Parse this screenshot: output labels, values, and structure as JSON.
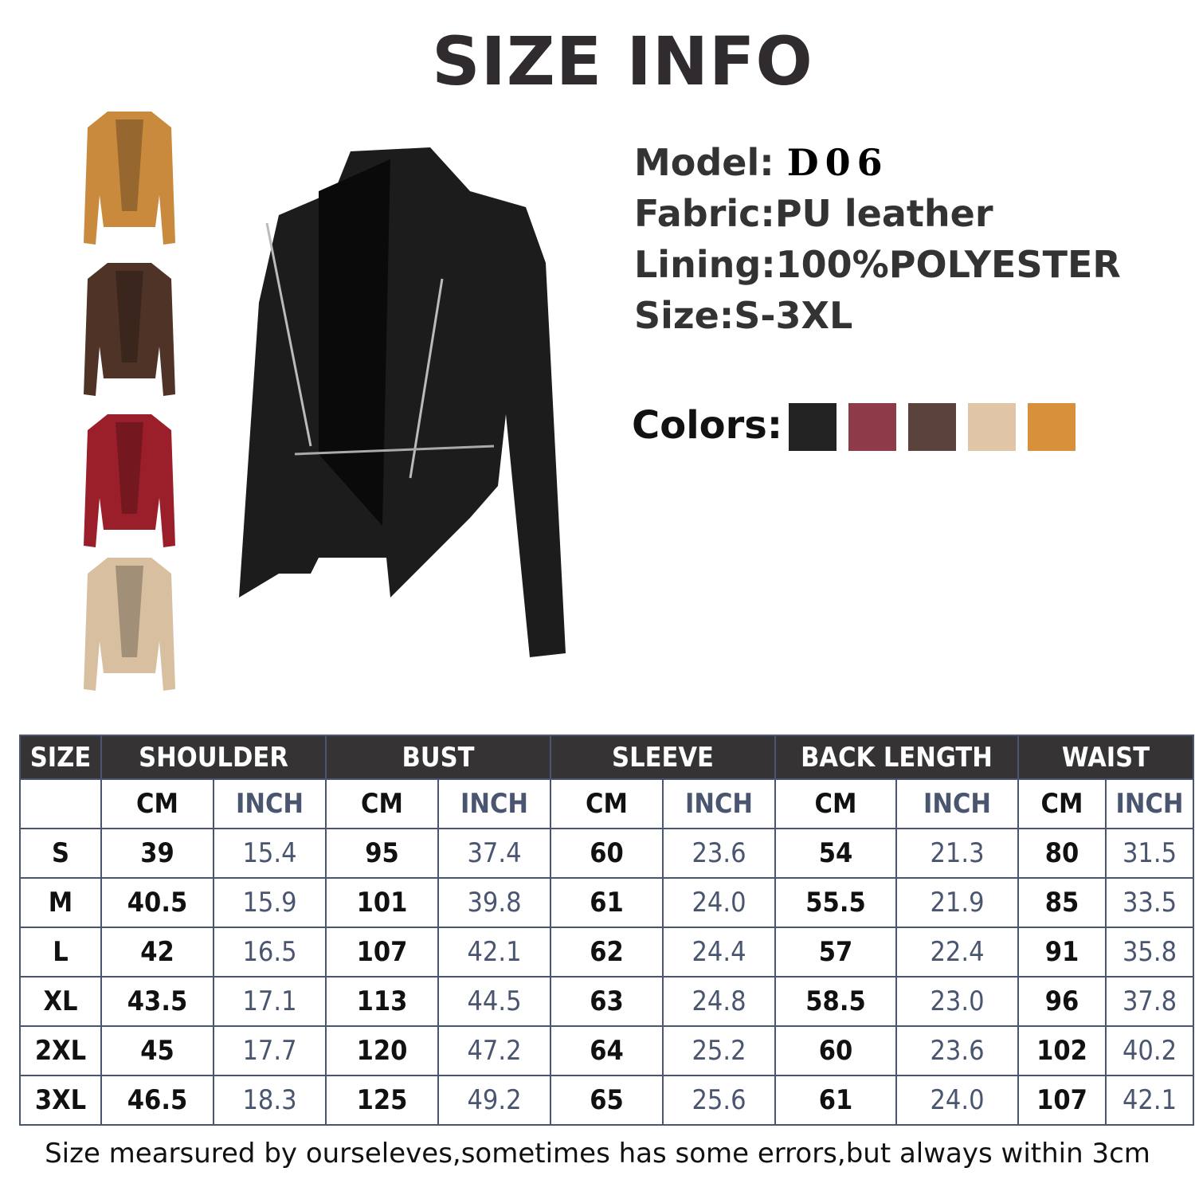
{
  "title": "SIZE INFO",
  "specs": {
    "model_label": "Model:",
    "model_code": "D06",
    "fabric": "Fabric:PU leather",
    "lining": "Lining:100%POLYESTER",
    "size": "Size:S-3XL",
    "colors_label": "Colors:",
    "colors": [
      "#232323",
      "#8e3a48",
      "#5a433c",
      "#e1c5a7",
      "#d8913b"
    ]
  },
  "thumbnails": [
    {
      "color": "#c98a3e"
    },
    {
      "color": "#4e3326"
    },
    {
      "color": "#9b1f2a"
    },
    {
      "color": "#d8bfa0"
    }
  ],
  "hero_color": "#1c1c1c",
  "table": {
    "headers": [
      "SIZE",
      "SHOULDER",
      "BUST",
      "SLEEVE",
      "BACK LENGTH",
      "WAIST"
    ],
    "units": [
      "CM",
      "INCH"
    ],
    "rows": [
      [
        "S",
        "39",
        "15.4",
        "95",
        "37.4",
        "60",
        "23.6",
        "54",
        "21.3",
        "80",
        "31.5"
      ],
      [
        "M",
        "40.5",
        "15.9",
        "101",
        "39.8",
        "61",
        "24.0",
        "55.5",
        "21.9",
        "85",
        "33.5"
      ],
      [
        "L",
        "42",
        "16.5",
        "107",
        "42.1",
        "62",
        "24.4",
        "57",
        "22.4",
        "91",
        "35.8"
      ],
      [
        "XL",
        "43.5",
        "17.1",
        "113",
        "44.5",
        "63",
        "24.8",
        "58.5",
        "23.0",
        "96",
        "37.8"
      ],
      [
        "2XL",
        "45",
        "17.7",
        "120",
        "47.2",
        "64",
        "25.2",
        "60",
        "23.6",
        "102",
        "40.2"
      ],
      [
        "3XL",
        "46.5",
        "18.3",
        "125",
        "49.2",
        "65",
        "25.6",
        "61",
        "24.0",
        "107",
        "42.1"
      ]
    ]
  },
  "note": "Size mearsured by ourseleves,sometimes has some errors,but always within 3cm"
}
